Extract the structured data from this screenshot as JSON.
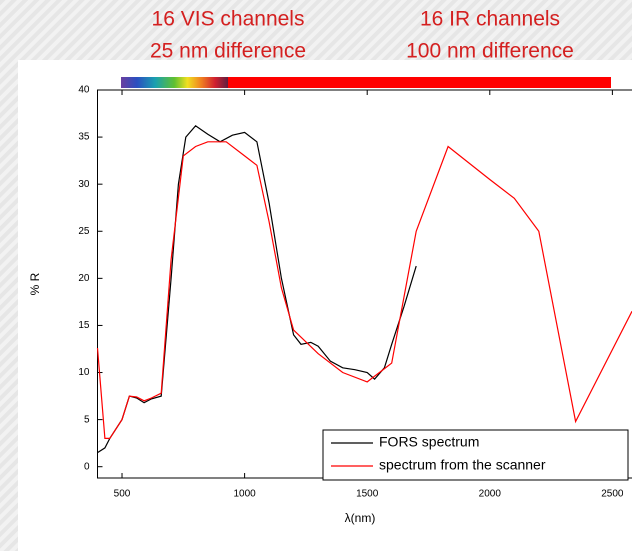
{
  "chart_data": {
    "type": "line",
    "annotations": [
      "16 VIS channels",
      "25 nm difference",
      "16 IR channels",
      "100 nm difference"
    ],
    "xlabel": "λ(nm)",
    "ylabel": "% R",
    "xlim": [
      400,
      2580
    ],
    "ylim": [
      -1.2,
      40
    ],
    "xticks": [
      500,
      1000,
      1500,
      2000,
      2500
    ],
    "yticks": [
      0,
      5,
      10,
      15,
      20,
      25,
      30,
      35,
      40
    ],
    "legend": "bottom-right",
    "series": [
      {
        "name": "FORS spectrum",
        "color": "#000000",
        "x": [
          400,
          430,
          450,
          500,
          530,
          560,
          590,
          620,
          660,
          700,
          730,
          760,
          800,
          850,
          900,
          950,
          1000,
          1050,
          1100,
          1150,
          1200,
          1230,
          1270,
          1300,
          1350,
          1400,
          1450,
          1500,
          1530,
          1570,
          1600,
          1650,
          1700
        ],
        "values": [
          1.5,
          2,
          3,
          5,
          7.5,
          7.3,
          6.8,
          7.2,
          7.5,
          20,
          30,
          35,
          36.2,
          35.3,
          34.5,
          35.2,
          35.5,
          34.5,
          28,
          20,
          14,
          13,
          13.2,
          12.8,
          11.2,
          10.5,
          10.3,
          10,
          9.3,
          10.5,
          13,
          17,
          21.3
        ]
      },
      {
        "name": "spectrum from the scanner",
        "color": "#ff0000",
        "x": [
          400,
          430,
          450,
          500,
          530,
          560,
          590,
          620,
          660,
          700,
          750,
          800,
          850,
          925,
          1000,
          1050,
          1100,
          1150,
          1200,
          1300,
          1400,
          1500,
          1600,
          1700,
          1830,
          2000,
          2100,
          2200,
          2350,
          2580
        ],
        "values": [
          12.6,
          3,
          3,
          5,
          7.5,
          7.4,
          7,
          7.3,
          7.8,
          22,
          33,
          34,
          34.5,
          34.5,
          33,
          32,
          26,
          19,
          14.5,
          12,
          10,
          9,
          11,
          25,
          34,
          30.5,
          28.5,
          25,
          4.8,
          16.5
        ]
      }
    ]
  }
}
